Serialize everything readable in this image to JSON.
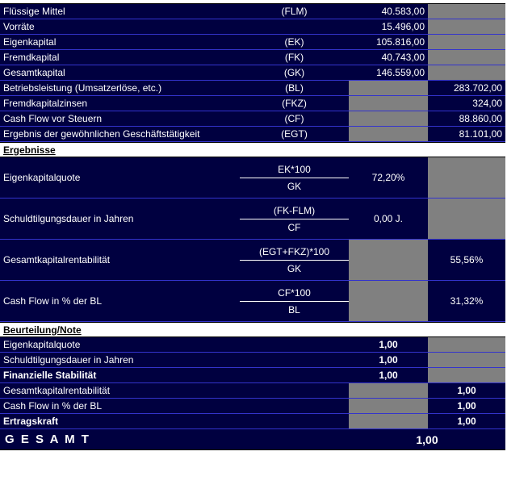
{
  "colors": {
    "background": "#000040",
    "grid_line": "#3333cc",
    "gray_cell": "#808080",
    "section_bg": "#ffffff",
    "section_text": "#000000",
    "text": "#ffffff"
  },
  "top_rows": [
    {
      "label": "Flüssige Mittel",
      "code": "(FLM)",
      "col1": "40.583,00",
      "col2": ""
    },
    {
      "label": "Vorräte",
      "code": "",
      "col1": "15.496,00",
      "col2": ""
    },
    {
      "label": "Eigenkapital",
      "code": "(EK)",
      "col1": "105.816,00",
      "col2": ""
    },
    {
      "label": "Fremdkapital",
      "code": "(FK)",
      "col1": "40.743,00",
      "col2": ""
    },
    {
      "label": "Gesamtkapital",
      "code": "(GK)",
      "col1": "146.559,00",
      "col2": ""
    },
    {
      "label": "Betriebsleistung (Umsatzerlöse, etc.)",
      "code": "(BL)",
      "col1": "",
      "col2": "283.702,00"
    },
    {
      "label": "Fremdkapitalzinsen",
      "code": "(FKZ)",
      "col1": "",
      "col2": "324,00"
    },
    {
      "label": "Cash Flow vor Steuern",
      "code": "(CF)",
      "col1": "",
      "col2": "88.860,00"
    },
    {
      "label": "Ergebnis der gewöhnlichen Geschäftstätigkeit",
      "code": "(EGT)",
      "col1": "",
      "col2": "81.101,00"
    }
  ],
  "sections": {
    "ergebnisse": "Ergebnisse",
    "beurteilung": "Beurteilung/Note"
  },
  "formula_rows": [
    {
      "label": "Eigenkapitalquote",
      "numerator": "EK*100",
      "denominator": "GK",
      "value": "72,20%"
    },
    {
      "label": "Schuldtilgungsdauer in Jahren",
      "numerator": "(FK-FLM)",
      "denominator": "CF",
      "value": "0,00 J."
    },
    {
      "label": "Gesamtkapitalrentabilität",
      "numerator": "(EGT+FKZ)*100",
      "denominator": "GK",
      "value": "55,56%"
    },
    {
      "label": "Cash Flow in % der BL",
      "numerator": "CF*100",
      "denominator": "BL",
      "value": "31,32%"
    }
  ],
  "rating_rows": [
    {
      "label": "Eigenkapitalquote",
      "value": "1,00"
    },
    {
      "label": "Schuldtilgungsdauer in Jahren",
      "value": "1,00"
    },
    {
      "label": "Finanzielle Stabilität",
      "value": "1,00"
    },
    {
      "label": "Gesamtkapitalrentabilität",
      "value": "1,00"
    },
    {
      "label": "Cash Flow in % der BL",
      "value": "1,00"
    },
    {
      "label": "Ertragskraft",
      "value": "1,00"
    }
  ],
  "total": {
    "label": "G E S A M T",
    "value": "1,00"
  }
}
